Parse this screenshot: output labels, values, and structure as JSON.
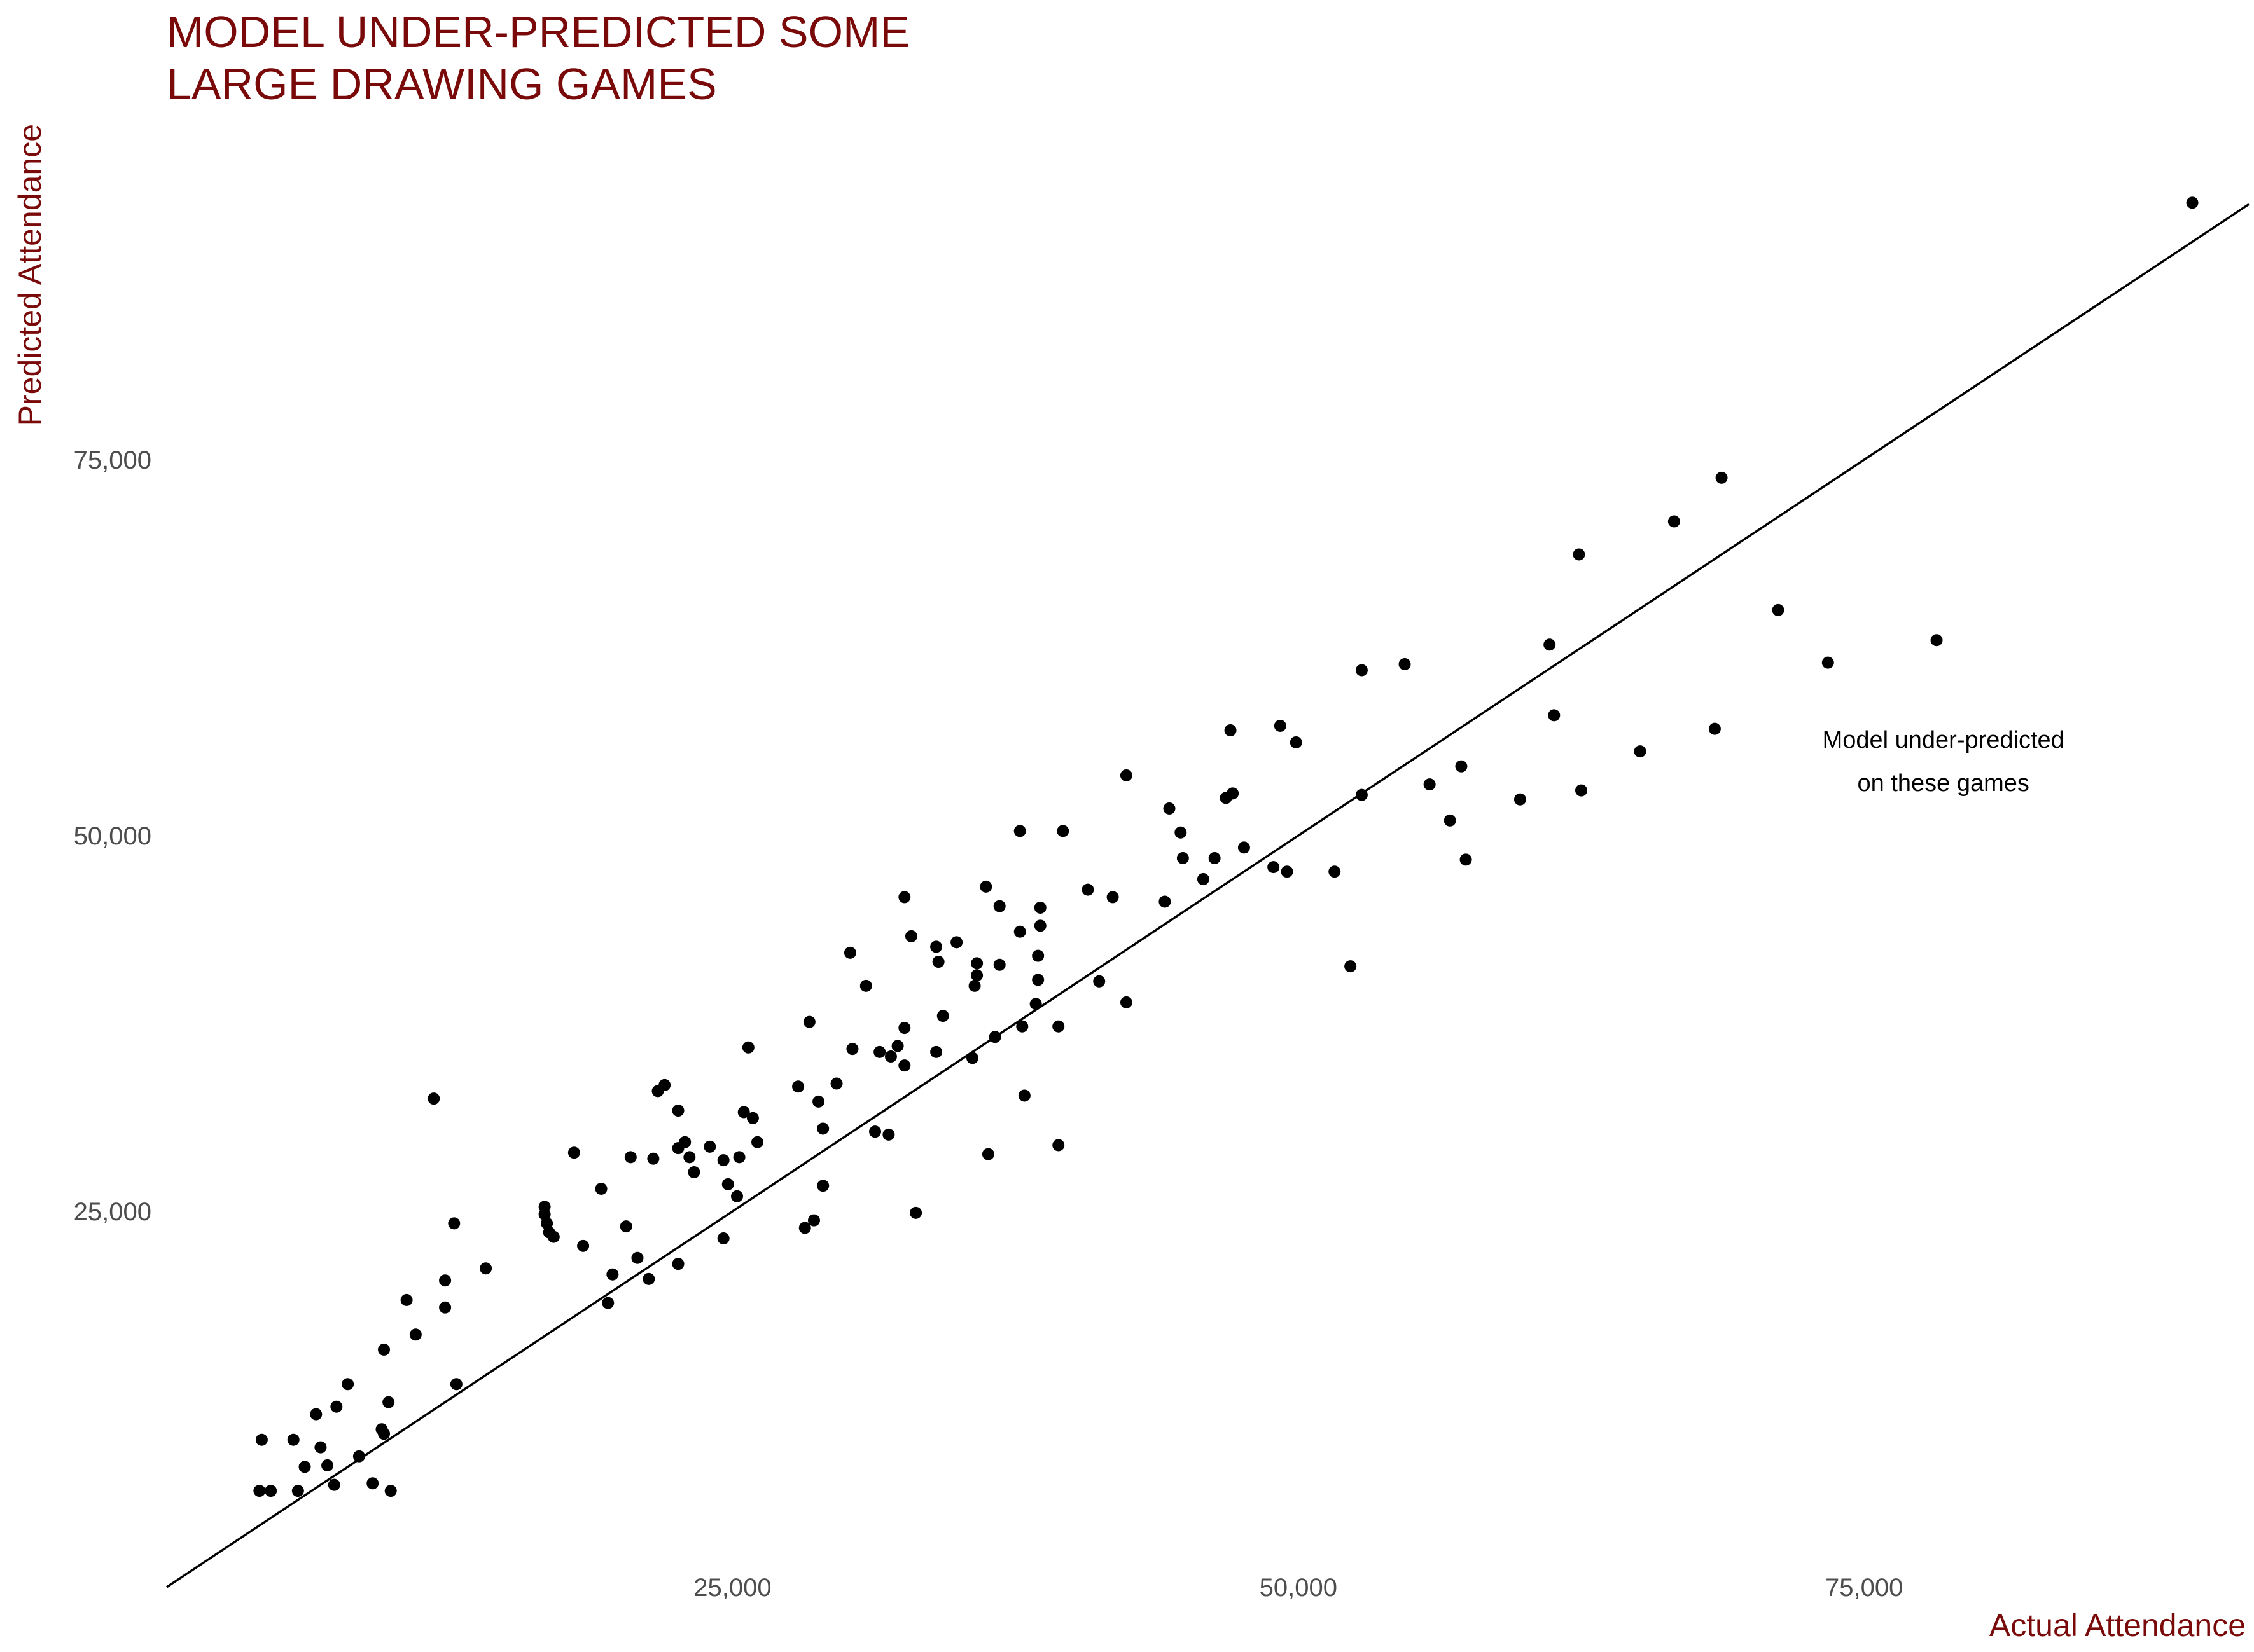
{
  "chart_data": {
    "type": "scatter",
    "title": "MODEL UNDER-PREDICTED SOME LARGE DRAWING GAMES",
    "title_lines": [
      "MODEL UNDER-PREDICTED SOME",
      "LARGE DRAWING GAMES"
    ],
    "xlabel": "Actual Attendance",
    "ylabel": "Predicted Attendance",
    "xlim": [
      0,
      92000
    ],
    "ylim": [
      3000,
      97000
    ],
    "x_ticks": [
      25000,
      50000,
      75000
    ],
    "x_tick_labels": [
      "25,000",
      "50,000",
      "75,000"
    ],
    "y_ticks": [
      25000,
      50000,
      75000
    ],
    "y_tick_labels": [
      "25,000",
      "50,000",
      "75,000"
    ],
    "grid": false,
    "legend": "none",
    "reference_line": {
      "type": "identity",
      "from": [
        0,
        0
      ],
      "to": [
        92000,
        92000
      ]
    },
    "annotation": {
      "lines": [
        "Model under-predicted",
        "on these games"
      ],
      "x": 78500,
      "y": 55000
    },
    "colors": {
      "title": "#7a0a0a",
      "axis_label": "#7a0a0a",
      "tick": "#4d4d4d",
      "point": "#000000",
      "line": "#000000"
    },
    "points": [
      [
        4200,
        9800
      ],
      [
        4600,
        6400
      ],
      [
        4100,
        6400
      ],
      [
        5600,
        9800
      ],
      [
        5800,
        6400
      ],
      [
        6600,
        11500
      ],
      [
        6100,
        8000
      ],
      [
        6800,
        9300
      ],
      [
        7100,
        8100
      ],
      [
        7500,
        12000
      ],
      [
        8000,
        13500
      ],
      [
        7400,
        6800
      ],
      [
        8500,
        8700
      ],
      [
        9100,
        6900
      ],
      [
        9500,
        10500
      ],
      [
        9600,
        10200
      ],
      [
        9800,
        12300
      ],
      [
        9600,
        15800
      ],
      [
        9900,
        6400
      ],
      [
        10600,
        19100
      ],
      [
        11000,
        16800
      ],
      [
        11800,
        32500
      ],
      [
        12300,
        20400
      ],
      [
        12300,
        18600
      ],
      [
        12700,
        24200
      ],
      [
        12800,
        13500
      ],
      [
        14100,
        21200
      ],
      [
        16700,
        25300
      ],
      [
        16700,
        24800
      ],
      [
        16800,
        24200
      ],
      [
        16900,
        23600
      ],
      [
        17100,
        23300
      ],
      [
        18000,
        28900
      ],
      [
        18400,
        22700
      ],
      [
        19200,
        26500
      ],
      [
        19500,
        18900
      ],
      [
        19700,
        20800
      ],
      [
        20300,
        24000
      ],
      [
        20500,
        28600
      ],
      [
        20800,
        21900
      ],
      [
        21300,
        20500
      ],
      [
        21500,
        28500
      ],
      [
        21700,
        33000
      ],
      [
        22000,
        33400
      ],
      [
        22600,
        31700
      ],
      [
        22600,
        29200
      ],
      [
        22900,
        29600
      ],
      [
        23100,
        28600
      ],
      [
        23300,
        27600
      ],
      [
        22600,
        21500
      ],
      [
        24000,
        29300
      ],
      [
        24600,
        23200
      ],
      [
        24600,
        28400
      ],
      [
        24800,
        26800
      ],
      [
        25200,
        26000
      ],
      [
        25300,
        28600
      ],
      [
        25500,
        31600
      ],
      [
        25700,
        35900
      ],
      [
        25900,
        31200
      ],
      [
        26100,
        29600
      ],
      [
        27900,
        33300
      ],
      [
        28200,
        23900
      ],
      [
        28400,
        37600
      ],
      [
        28600,
        24400
      ],
      [
        28800,
        32300
      ],
      [
        29000,
        26700
      ],
      [
        29000,
        30500
      ],
      [
        29600,
        33500
      ],
      [
        30300,
        35800
      ],
      [
        30900,
        40000
      ],
      [
        31500,
        35600
      ],
      [
        31300,
        30300
      ],
      [
        31900,
        30100
      ],
      [
        30200,
        42200
      ],
      [
        32000,
        35300
      ],
      [
        32600,
        45900
      ],
      [
        32300,
        36000
      ],
      [
        32600,
        34700
      ],
      [
        32600,
        37200
      ],
      [
        32900,
        43300
      ],
      [
        33100,
        24900
      ],
      [
        34000,
        35600
      ],
      [
        34100,
        41600
      ],
      [
        34300,
        38000
      ],
      [
        34900,
        42900
      ],
      [
        34000,
        42600
      ],
      [
        35600,
        35200
      ],
      [
        35700,
        40000
      ],
      [
        35800,
        40700
      ],
      [
        35800,
        41500
      ],
      [
        36200,
        46600
      ],
      [
        36300,
        28800
      ],
      [
        36600,
        36600
      ],
      [
        36800,
        41400
      ],
      [
        36800,
        45300
      ],
      [
        37700,
        50300
      ],
      [
        37700,
        43600
      ],
      [
        37800,
        37300
      ],
      [
        37900,
        32700
      ],
      [
        38400,
        38800
      ],
      [
        38500,
        40400
      ],
      [
        38600,
        45200
      ],
      [
        38600,
        44000
      ],
      [
        38500,
        42000
      ],
      [
        39400,
        37300
      ],
      [
        39400,
        29400
      ],
      [
        39600,
        50300
      ],
      [
        40700,
        46400
      ],
      [
        41200,
        40300
      ],
      [
        41800,
        45900
      ],
      [
        42400,
        54000
      ],
      [
        42400,
        38900
      ],
      [
        44100,
        45600
      ],
      [
        44300,
        51800
      ],
      [
        44800,
        50200
      ],
      [
        44900,
        48500
      ],
      [
        45800,
        47100
      ],
      [
        46300,
        48500
      ],
      [
        46800,
        52500
      ],
      [
        47000,
        57000
      ],
      [
        47100,
        52800
      ],
      [
        47600,
        49200
      ],
      [
        48900,
        47900
      ],
      [
        49200,
        57300
      ],
      [
        49500,
        47600
      ],
      [
        49900,
        56200
      ],
      [
        51600,
        47600
      ],
      [
        52300,
        41300
      ],
      [
        52800,
        61000
      ],
      [
        52800,
        52700
      ],
      [
        54700,
        61400
      ],
      [
        55800,
        53400
      ],
      [
        56700,
        51000
      ],
      [
        57200,
        54600
      ],
      [
        57400,
        48400
      ],
      [
        59800,
        52400
      ],
      [
        61100,
        62700
      ],
      [
        61300,
        58000
      ],
      [
        62400,
        68700
      ],
      [
        62500,
        53000
      ],
      [
        65100,
        55600
      ],
      [
        66600,
        70900
      ],
      [
        68400,
        57100
      ],
      [
        68700,
        73800
      ],
      [
        71200,
        65000
      ],
      [
        73400,
        61500
      ],
      [
        78200,
        63000
      ],
      [
        89500,
        92100
      ]
    ]
  }
}
